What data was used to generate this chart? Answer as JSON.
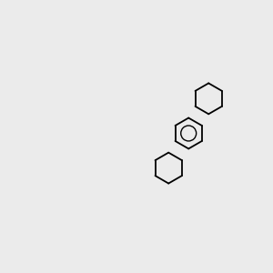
{
  "bg_color": "#ebebeb",
  "bond_color": "#000000",
  "o_color": "#ff0000",
  "n_color": "#0000ff",
  "cl_color": "#00bb00",
  "figsize": [
    3.0,
    3.0
  ],
  "dpi": 100
}
